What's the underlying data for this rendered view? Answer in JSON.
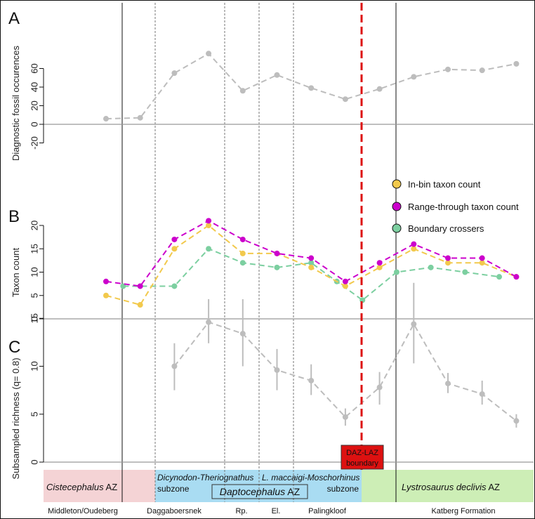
{
  "panels": {
    "a": {
      "label": "A"
    },
    "b": {
      "label": "B"
    },
    "c": {
      "label": "C"
    }
  },
  "legend": {
    "in_bin": "In-bin taxon count",
    "range_through": "Range-through taxon count",
    "boundary": "Boundary crossers"
  },
  "colors": {
    "gray": "#bdbdbd",
    "yellow": "#f2c94c",
    "magenta": "#cc00cc",
    "green": "#7ccfa0",
    "red": "#dd1111",
    "zone_pink": "#f4d3d5",
    "zone_blue": "#a9dcf2",
    "zone_green": "#cdeeb6"
  },
  "zones": {
    "cistecephalus": {
      "name": "Cistecephalus",
      "suffix": " AZ"
    },
    "dicynodon": {
      "name": "Dicynodon-Theriognathus",
      "sub": "subzone"
    },
    "daptocephalus": {
      "name": "Daptocephalus",
      "suffix": " AZ"
    },
    "maccaigi": {
      "name": "L. maccaigi-Moschorhinus",
      "sub": "subzone"
    },
    "lystrosaurus": {
      "name": "Lystrosaurus declivis",
      "suffix": " AZ"
    },
    "boundary_l1": "DAZ-LAZ",
    "boundary_l2": "boundary"
  },
  "formations": [
    "Middleton/Oudeberg",
    "Daggaboersnek",
    "Rp.",
    "El.",
    "Palingkloof",
    "Katberg Formation"
  ],
  "chart_data": [
    {
      "type": "line",
      "panel": "A",
      "title": "",
      "xlabel": "",
      "ylabel": "Diagnostic fossil occurences",
      "ylim": [
        -28,
        80
      ],
      "yticks": [
        -20,
        0,
        20,
        40,
        60
      ],
      "x": [
        1,
        2,
        3,
        4,
        5,
        6,
        7,
        8,
        9,
        10,
        11,
        12,
        13
      ],
      "series": [
        {
          "values": [
            6,
            7,
            55,
            76,
            36,
            53,
            39,
            27,
            38,
            51,
            59,
            58,
            65
          ]
        }
      ]
    },
    {
      "type": "line",
      "panel": "B",
      "title": "",
      "xlabel": "",
      "ylabel": "Taxon count",
      "ylim": [
        0,
        21
      ],
      "yticks": [
        0,
        5,
        10,
        15,
        20
      ],
      "x": [
        1,
        2,
        3,
        4,
        5,
        6,
        7,
        8,
        9,
        10,
        11,
        12,
        13
      ],
      "series": [
        {
          "name": "In-bin taxon count",
          "values": [
            5,
            3,
            15,
            20,
            14,
            14,
            11,
            7,
            11,
            15,
            12,
            12,
            9
          ]
        },
        {
          "name": "Range-through taxon count",
          "values": [
            8,
            7,
            17,
            21,
            17,
            14,
            13,
            8,
            12,
            16,
            13,
            13,
            9
          ]
        },
        {
          "name": "Boundary crossers",
          "x": [
            1.5,
            3,
            4,
            5,
            6,
            7,
            7.75,
            8.5,
            9.5,
            10.5,
            11.5,
            12.5
          ],
          "values": [
            7,
            7,
            15,
            12,
            11,
            12,
            8,
            4,
            10,
            11,
            10,
            9
          ]
        }
      ],
      "legend_position": "right"
    },
    {
      "type": "line",
      "panel": "C",
      "title": "",
      "xlabel": "",
      "ylabel": "Subsampled richness (q= 0.8)",
      "ylim": [
        0,
        19
      ],
      "yticks": [
        0,
        5,
        10,
        15
      ],
      "x": [
        3,
        4,
        5,
        6,
        7,
        8,
        9,
        10,
        11,
        12,
        13
      ],
      "series": [
        {
          "values": [
            10,
            14.6,
            13.4,
            9.6,
            8.5,
            4.7,
            7.8,
            14.4,
            8.2,
            7.1,
            4.3
          ],
          "lower": [
            7.5,
            12.4,
            10,
            7.5,
            7,
            3.8,
            6,
            10.3,
            7.2,
            6,
            3.6
          ],
          "upper": [
            12.4,
            17,
            17,
            11.8,
            10.2,
            5.6,
            9.4,
            18.7,
            9.3,
            8.5,
            5
          ]
        }
      ]
    }
  ]
}
